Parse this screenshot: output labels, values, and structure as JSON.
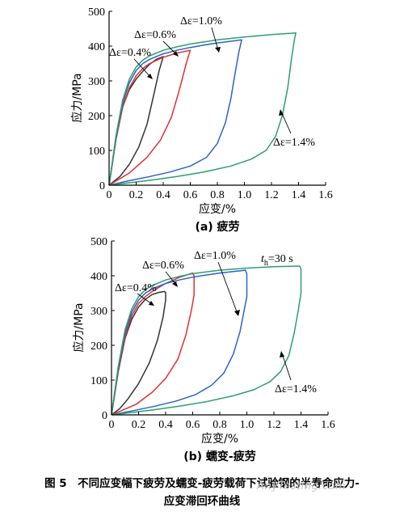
{
  "chart_data": [
    {
      "type": "line",
      "subtitle": "(a) 疲劳",
      "xlabel": "应变/%",
      "ylabel": "应力/MPa",
      "xlim": [
        0,
        1.6
      ],
      "ylim": [
        0,
        500
      ],
      "xticks": [
        "0",
        "0.2",
        "0.4",
        "0.6",
        "0.8",
        "1.0",
        "1.2",
        "1.4",
        "1.6"
      ],
      "yticks": [
        "0",
        "100",
        "200",
        "300",
        "400",
        "500"
      ],
      "annotations": [
        "Δε=0.4%",
        "Δε=0.6%",
        "Δε=1.0%",
        "Δε=1.4%"
      ],
      "series": [
        {
          "color": "#333333",
          "loading": [
            [
              0,
              0
            ],
            [
              0.05,
              130
            ],
            [
              0.1,
              225
            ],
            [
              0.15,
              275
            ],
            [
              0.2,
              305
            ],
            [
              0.25,
              328
            ],
            [
              0.3,
              348
            ],
            [
              0.35,
              362
            ],
            [
              0.4,
              370
            ]
          ],
          "unloading": [
            [
              0.4,
              370
            ],
            [
              0.37,
              330
            ],
            [
              0.33,
              260
            ],
            [
              0.28,
              175
            ],
            [
              0.22,
              110
            ],
            [
              0.15,
              60
            ],
            [
              0.08,
              25
            ],
            [
              0,
              0
            ]
          ]
        },
        {
          "color": "#e03030",
          "loading": [
            [
              0,
              0
            ],
            [
              0.05,
              130
            ],
            [
              0.1,
              225
            ],
            [
              0.15,
              280
            ],
            [
              0.2,
              315
            ],
            [
              0.25,
              336
            ],
            [
              0.3,
              350
            ],
            [
              0.4,
              368
            ],
            [
              0.5,
              380
            ],
            [
              0.6,
              388
            ]
          ],
          "unloading": [
            [
              0.6,
              388
            ],
            [
              0.57,
              350
            ],
            [
              0.52,
              275
            ],
            [
              0.46,
              195
            ],
            [
              0.38,
              130
            ],
            [
              0.28,
              80
            ],
            [
              0.15,
              35
            ],
            [
              0,
              0
            ]
          ]
        },
        {
          "color": "#2a63c9",
          "loading": [
            [
              0,
              0
            ],
            [
              0.05,
              135
            ],
            [
              0.1,
              235
            ],
            [
              0.15,
              295
            ],
            [
              0.2,
              330
            ],
            [
              0.25,
              350
            ],
            [
              0.3,
              362
            ],
            [
              0.4,
              378
            ],
            [
              0.5,
              388
            ],
            [
              0.6,
              396
            ],
            [
              0.7,
              403
            ],
            [
              0.8,
              409
            ],
            [
              0.9,
              414
            ],
            [
              0.98,
              418
            ]
          ],
          "unloading": [
            [
              0.98,
              418
            ],
            [
              0.96,
              385
            ],
            [
              0.93,
              320
            ],
            [
              0.9,
              250
            ],
            [
              0.86,
              180
            ],
            [
              0.8,
              120
            ],
            [
              0.72,
              80
            ],
            [
              0.6,
              55
            ],
            [
              0.45,
              38
            ],
            [
              0.3,
              25
            ],
            [
              0.15,
              13
            ],
            [
              0,
              0
            ]
          ]
        },
        {
          "color": "#2e9e6e",
          "loading": [
            [
              0,
              0
            ],
            [
              0.05,
              140
            ],
            [
              0.1,
              245
            ],
            [
              0.15,
              305
            ],
            [
              0.2,
              340
            ],
            [
              0.25,
              360
            ],
            [
              0.3,
              372
            ],
            [
              0.4,
              388
            ],
            [
              0.5,
              398
            ],
            [
              0.6,
              406
            ],
            [
              0.8,
              418
            ],
            [
              1.0,
              426
            ],
            [
              1.2,
              433
            ],
            [
              1.38,
              438
            ]
          ],
          "unloading": [
            [
              1.38,
              438
            ],
            [
              1.37,
              420
            ],
            [
              1.35,
              370
            ],
            [
              1.32,
              280
            ],
            [
              1.28,
              200
            ],
            [
              1.23,
              140
            ],
            [
              1.16,
              100
            ],
            [
              1.05,
              75
            ],
            [
              0.9,
              55
            ],
            [
              0.7,
              38
            ],
            [
              0.5,
              25
            ],
            [
              0.3,
              14
            ],
            [
              0.15,
              7
            ],
            [
              0,
              0
            ]
          ]
        }
      ]
    },
    {
      "type": "line",
      "subtitle": "(b) 蠕变-疲劳",
      "xlabel": "应变/%",
      "ylabel": "应力/MPa",
      "xlim": [
        0,
        1.6
      ],
      "ylim": [
        0,
        500
      ],
      "xticks": [
        "0",
        "0.2",
        "0.4",
        "0.6",
        "0.8",
        "1.0",
        "1.2",
        "1.4",
        "1.6"
      ],
      "yticks": [
        "0",
        "100",
        "200",
        "300",
        "400",
        "500"
      ],
      "annotations": [
        "Δε=0.4%",
        "Δε=0.6%",
        "Δε=1.0%",
        "Δε=1.4%",
        "t_h=30 s"
      ],
      "series": [
        {
          "color": "#333333",
          "loading": [
            [
              0,
              0
            ],
            [
              0.05,
              125
            ],
            [
              0.1,
              220
            ],
            [
              0.15,
              275
            ],
            [
              0.2,
              310
            ],
            [
              0.25,
              332
            ],
            [
              0.3,
              346
            ],
            [
              0.35,
              352
            ],
            [
              0.39,
              355
            ],
            [
              0.4,
              352
            ],
            [
              0.4,
              330
            ]
          ],
          "unloading": [
            [
              0.4,
              330
            ],
            [
              0.38,
              280
            ],
            [
              0.34,
              215
            ],
            [
              0.28,
              150
            ],
            [
              0.2,
              90
            ],
            [
              0.12,
              45
            ],
            [
              0.06,
              18
            ],
            [
              0,
              0
            ]
          ]
        },
        {
          "color": "#e03030",
          "loading": [
            [
              0,
              0
            ],
            [
              0.05,
              130
            ],
            [
              0.1,
              225
            ],
            [
              0.15,
              285
            ],
            [
              0.2,
              320
            ],
            [
              0.25,
              340
            ],
            [
              0.3,
              355
            ],
            [
              0.4,
              378
            ],
            [
              0.5,
              395
            ],
            [
              0.6,
              408
            ],
            [
              0.61,
              400
            ],
            [
              0.61,
              345
            ]
          ],
          "unloading": [
            [
              0.61,
              345
            ],
            [
              0.59,
              300
            ],
            [
              0.55,
              230
            ],
            [
              0.49,
              160
            ],
            [
              0.4,
              105
            ],
            [
              0.3,
              65
            ],
            [
              0.18,
              30
            ],
            [
              0,
              0
            ]
          ]
        },
        {
          "color": "#2a63c9",
          "loading": [
            [
              0,
              0
            ],
            [
              0.05,
              135
            ],
            [
              0.1,
              235
            ],
            [
              0.15,
              295
            ],
            [
              0.2,
              330
            ],
            [
              0.25,
              350
            ],
            [
              0.3,
              362
            ],
            [
              0.4,
              378
            ],
            [
              0.5,
              388
            ],
            [
              0.6,
              396
            ],
            [
              0.7,
              402
            ],
            [
              0.8,
              408
            ],
            [
              0.9,
              412
            ],
            [
              0.99,
              416
            ],
            [
              1.0,
              405
            ],
            [
              1.0,
              340
            ]
          ],
          "unloading": [
            [
              1.0,
              340
            ],
            [
              0.98,
              300
            ],
            [
              0.95,
              240
            ],
            [
              0.9,
              175
            ],
            [
              0.83,
              120
            ],
            [
              0.74,
              85
            ],
            [
              0.62,
              58
            ],
            [
              0.48,
              40
            ],
            [
              0.32,
              25
            ],
            [
              0.16,
              12
            ],
            [
              0,
              0
            ]
          ]
        },
        {
          "color": "#2e9e6e",
          "loading": [
            [
              0,
              0
            ],
            [
              0.05,
              140
            ],
            [
              0.1,
              245
            ],
            [
              0.15,
              305
            ],
            [
              0.2,
              340
            ],
            [
              0.25,
              360
            ],
            [
              0.3,
              372
            ],
            [
              0.4,
              388
            ],
            [
              0.5,
              398
            ],
            [
              0.6,
              406
            ],
            [
              0.8,
              416
            ],
            [
              1.0,
              422
            ],
            [
              1.2,
              426
            ],
            [
              1.39,
              428
            ],
            [
              1.4,
              420
            ],
            [
              1.4,
              350
            ]
          ],
          "unloading": [
            [
              1.4,
              350
            ],
            [
              1.38,
              300
            ],
            [
              1.35,
              235
            ],
            [
              1.31,
              170
            ],
            [
              1.25,
              125
            ],
            [
              1.17,
              95
            ],
            [
              1.05,
              72
            ],
            [
              0.9,
              55
            ],
            [
              0.7,
              38
            ],
            [
              0.5,
              25
            ],
            [
              0.3,
              14
            ],
            [
              0.15,
              7
            ],
            [
              0,
              0
            ]
          ]
        }
      ]
    }
  ],
  "caption_line1": "图 5　不同应变幅下疲劳及蠕变-疲劳载荷下试验钢的半寿命应力-",
  "caption_line2": "应变滞回环曲线",
  "watermark": "AnyTesting.com"
}
